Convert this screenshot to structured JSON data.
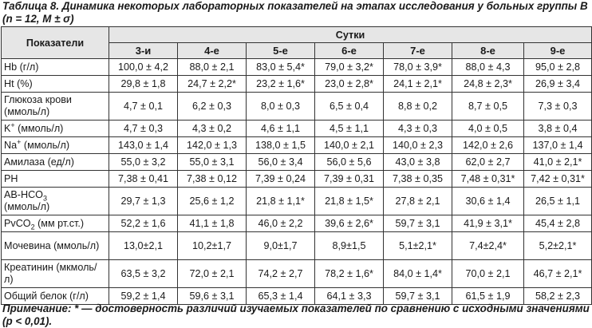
{
  "caption": "Таблица 8. Динамика некоторых лабораторных показателей на этапах исследования у больных группы В (n = 12, M ± σ)",
  "table": {
    "param_header": "Показатели",
    "group_header": "Сутки",
    "days": [
      "3-и",
      "4-е",
      "5-е",
      "6-е",
      "7-е",
      "8-е",
      "9-е"
    ],
    "rows": [
      {
        "label": "Hb (г/л)",
        "values": [
          "100,0 ± 4,2",
          "88,0 ± 2,1",
          "83,0 ± 5,4*",
          "79,0 ± 3,2*",
          "78,0 ± 3,9*",
          "88,0 ± 4,3",
          "95,0 ± 2,8"
        ]
      },
      {
        "label": "Ht (%)",
        "values": [
          "29,8 ± 1,8",
          "24,7 ± 2,2*",
          "23,2 ± 1,6*",
          "23,0 ± 2,8*",
          "24,1 ± 2,1*",
          "24,8 ± 2,3*",
          "26,9 ± 3,4"
        ]
      },
      {
        "label": "Глюкоза крови (ммоль/л)",
        "values": [
          "4,7 ± 0,1",
          "6,2 ± 0,3",
          "8,0 ± 0,3",
          "6,5 ± 0,4",
          "8,8 ± 0,2",
          "8,7 ± 0,5",
          "7,3 ± 0,3"
        ]
      },
      {
        "label_main": "K",
        "label_sup": "+",
        "label_rest": " (ммоль/л)",
        "values": [
          "4,7 ± 0,3",
          "4,3 ± 0,2",
          "4,6 ± 1,1",
          "4,5 ± 1,1",
          "4,3 ± 0,3",
          "4,0 ± 0,5",
          "3,8 ± 0,4"
        ]
      },
      {
        "label_main": "Na",
        "label_sup": "+",
        "label_rest": " (ммоль/л)",
        "values": [
          "143,0 ± 1,4",
          "142,0 ± 1,3",
          "138,0 ± 1,5",
          "140,0 ± 2,1",
          "140,0 ± 2,3",
          "142,0 ± 2,6",
          "137,0 ± 1,4"
        ]
      },
      {
        "label": "Амилаза (ед/л)",
        "values": [
          "55,0 ± 3,2",
          "55,0 ± 3,1",
          "56,0 ± 3,4",
          "56,0 ± 5,6",
          "43,0 ± 3,8",
          "62,0 ± 2,7",
          "41,0 ± 2,1*"
        ]
      },
      {
        "label": "PH",
        "values": [
          "7,38 ± 0,41",
          "7,38 ± 0,12",
          "7,39 ± 0,24",
          "7,39 ± 0,31",
          "7,38 ± 0,35",
          "7,48 ± 0,31*",
          "7,42 ± 0,31*"
        ]
      },
      {
        "label_main": "AB-HCO",
        "label_sub": "3",
        "label_line2": "(ммоль/л)",
        "values": [
          "29,7 ± 1,3",
          "25,6 ± 1,2",
          "21,8 ± 1,1*",
          "21,8 ± 1,5*",
          "27,8 ± 2,1",
          "30,6 ± 1,4",
          "26,5 ± 1,1"
        ]
      },
      {
        "label_main": "PvCO",
        "label_sub": "2",
        "label_rest": " (мм рт.ст.)",
        "values": [
          "52,2 ± 1,6",
          "41,1 ± 1,8",
          "46,0 ± 2,2",
          "39,6 ± 2,6*",
          "59,7 ± 3,1",
          "41,9 ± 3,1*",
          "45,4 ± 2,8"
        ]
      },
      {
        "label": "Мочевина (ммоль/л)",
        "values": [
          "13,0±2,1",
          "10,2±1,7",
          "9,0±1,7",
          "8,9±1,5",
          "5,1±2,1*",
          "7,4±2,4*",
          "5,2±2,1*"
        ]
      },
      {
        "label": "Креатинин (мкмоль/л)",
        "values": [
          "63,5 ± 3,2",
          "72,0 ± 2,1",
          "74,2 ± 2,7",
          "78,2 ± 1,6*",
          "84,0 ± 1,4*",
          "70,0 ± 2,1",
          "46,7 ± 2,1*"
        ]
      },
      {
        "label": "Общий белок (г/л)",
        "values": [
          "59,2 ± 1,4",
          "59,6 ± 3,1",
          "65,3 ± 1,4",
          "64,1 ± 3,3",
          "59,7 ± 3,1",
          "61,5 ± 1,9",
          "58,2 ± 2,3"
        ]
      }
    ]
  },
  "note": {
    "label": "Примечание:",
    "text": " * — достоверность различий изучаемых показателей по сравнению с исходными значениями (p < 0,01)."
  }
}
